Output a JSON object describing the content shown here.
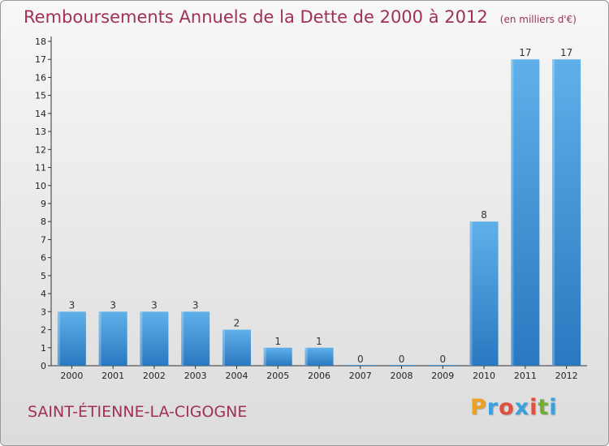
{
  "header": {
    "title": "Remboursements Annuels de la Dette de 2000 à 2012",
    "unit": "(en milliers d'€)"
  },
  "footer": {
    "commune": "SAINT-ÉTIENNE-LA-CIGOGNE",
    "logo_letters": [
      "P",
      "r",
      "o",
      "x",
      "i",
      "t",
      "i"
    ],
    "logo_colors": [
      "#f0a020",
      "#3aa0e0",
      "#e05040",
      "#3aa0e0",
      "#e05040",
      "#70b030",
      "#3aa0e0"
    ]
  },
  "colors": {
    "bar": "#4a9fe0",
    "bar_dark": "#2a78c0",
    "accent_text": "#a0305a"
  },
  "chart_data": {
    "type": "bar",
    "categories": [
      "2000",
      "2001",
      "2002",
      "2003",
      "2004",
      "2005",
      "2006",
      "2007",
      "2008",
      "2009",
      "2010",
      "2011",
      "2012"
    ],
    "values": [
      3,
      3,
      3,
      3,
      2,
      1,
      1,
      0,
      0,
      0,
      8,
      17,
      17
    ],
    "data_labels": [
      "3",
      "3",
      "3",
      "3",
      "2",
      "1",
      "1",
      "0",
      "0",
      "0",
      "8",
      "17",
      "17"
    ],
    "yticks": [
      "0",
      "1",
      "2",
      "3",
      "4",
      "5",
      "6",
      "7",
      "8",
      "9",
      "10",
      "11",
      "12",
      "13",
      "14",
      "15",
      "16",
      "17",
      "18"
    ],
    "ylim": [
      0,
      18
    ],
    "grid": false
  }
}
